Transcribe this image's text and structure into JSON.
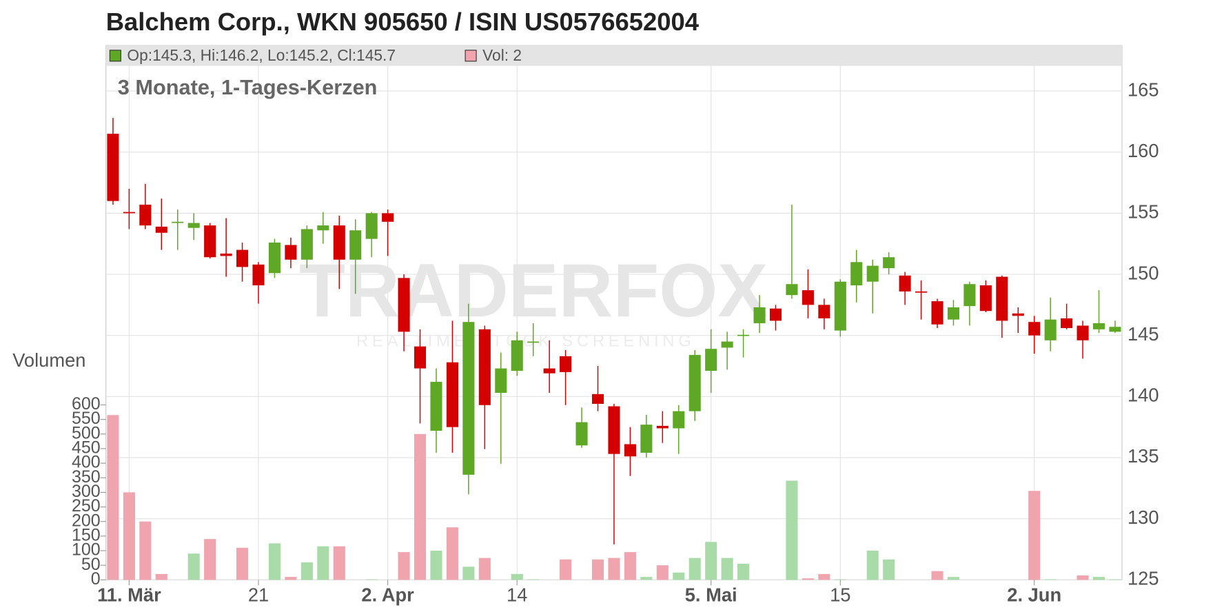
{
  "chart_data": {
    "type": "candlestick",
    "title": "Balchem Corp., WKN 905650 / ISIN US0576652004",
    "subtitle": "3 Monate, 1-Tages-Kerzen",
    "legend_ohlc": "Op:145.3, Hi:146.2, Lo:145.2, Cl:145.7",
    "legend_volume": "Vol: 2",
    "volume_axis_label": "Volumen",
    "watermark": "TRADERFOX",
    "watermark_sub": "REALTIME STOCK SCREENING",
    "categories": [
      null,
      "11. Mär",
      null,
      null,
      null,
      null,
      null,
      null,
      null,
      "21",
      null,
      null,
      null,
      null,
      null,
      null,
      null,
      "2. Apr",
      null,
      null,
      null,
      null,
      null,
      null,
      null,
      "14",
      null,
      null,
      null,
      null,
      null,
      null,
      null,
      null,
      null,
      null,
      null,
      "5. Mai",
      null,
      null,
      null,
      null,
      null,
      null,
      null,
      "15",
      null,
      null,
      null,
      null,
      null,
      null,
      null,
      null,
      null,
      null,
      null,
      "2. Jun",
      null,
      null,
      null,
      null,
      null
    ],
    "open": [
      161.5,
      155.1,
      155.7,
      153.9,
      154.3,
      153.8,
      154,
      151.7,
      152,
      150.8,
      150.1,
      152.4,
      151.2,
      153.6,
      154,
      151.2,
      152.9,
      155,
      149.7,
      144.1,
      137.2,
      142.8,
      133.6,
      145.5,
      140.3,
      142.1,
      144.4,
      142.3,
      143.3,
      136,
      140.2,
      139.2,
      136.1,
      135.4,
      137.6,
      137.4,
      138.8,
      142.1,
      144,
      145,
      146,
      147.2,
      148.3,
      148.7,
      147.5,
      145.4,
      149.1,
      149.4,
      150.5,
      149.9,
      148.6,
      147.8,
      146.3,
      147.4,
      149.1,
      149.8,
      146.8,
      146.1,
      144.6,
      146.4,
      145.8,
      145.5,
      145.3
    ],
    "high": [
      162.8,
      157,
      157.4,
      156.2,
      155.3,
      155,
      154.2,
      154.6,
      152.6,
      151,
      152.9,
      153,
      154,
      155.1,
      154.8,
      154.5,
      155.1,
      155.3,
      150,
      145.5,
      142.3,
      146.2,
      147.6,
      145.8,
      143.6,
      145.3,
      146,
      144.6,
      143.8,
      139.1,
      142.5,
      139.4,
      137.5,
      138.5,
      138.8,
      139.3,
      143.8,
      145.5,
      145.3,
      145.5,
      148.3,
      147.5,
      155.7,
      150.4,
      148,
      149.6,
      152,
      151.2,
      151.8,
      150.2,
      149.5,
      148,
      147.9,
      149.4,
      149.5,
      149.9,
      147.3,
      146.6,
      148.1,
      147.6,
      146.2,
      148.7,
      146.2
    ],
    "low": [
      155.7,
      153.7,
      153.7,
      152,
      152,
      152.8,
      151.3,
      149.8,
      149.4,
      147.6,
      149.7,
      150.5,
      150.5,
      152.5,
      148.8,
      148.4,
      151.4,
      151.5,
      143.7,
      137.8,
      135.4,
      135.4,
      132,
      135.7,
      134.5,
      141.7,
      143.3,
      140.3,
      139.3,
      135.8,
      138.8,
      127.9,
      133.5,
      135,
      136.2,
      135.3,
      138,
      140.3,
      142.2,
      143.2,
      145.2,
      145.4,
      148,
      146.4,
      145.5,
      144.9,
      147.7,
      146.8,
      150,
      147.5,
      146.3,
      145.6,
      145.8,
      145.8,
      146.9,
      144.8,
      145.2,
      143.5,
      143.7,
      145.5,
      143.1,
      145.2,
      145.2
    ],
    "close": [
      156,
      155,
      154,
      153.4,
      154.3,
      154.2,
      151.4,
      151.5,
      150.6,
      149.1,
      152.6,
      151.2,
      153.7,
      154,
      151.2,
      153.6,
      155,
      154.3,
      145.3,
      142.3,
      141.2,
      137.5,
      146.1,
      139.3,
      142.3,
      144.6,
      144.5,
      141.9,
      142,
      137.9,
      139.4,
      135.3,
      135.1,
      137.7,
      137.4,
      138.8,
      143.4,
      143.9,
      144.5,
      145.05,
      147.3,
      146.2,
      149.2,
      147.5,
      146.4,
      149.4,
      151,
      150.7,
      151.4,
      148.6,
      148.5,
      145.9,
      147.3,
      149.2,
      147,
      146.2,
      146.6,
      145,
      146.3,
      145.6,
      144.6,
      146,
      145.7
    ],
    "volume": [
      565,
      300,
      200,
      20,
      0,
      90,
      140,
      0,
      110,
      0,
      125,
      10,
      60,
      115,
      115,
      0,
      2,
      0,
      95,
      500,
      100,
      180,
      45,
      75,
      0,
      20,
      2,
      0,
      70,
      0,
      70,
      75,
      95,
      10,
      50,
      25,
      75,
      130,
      75,
      55,
      0,
      0,
      340,
      5,
      20,
      2,
      0,
      100,
      70,
      0,
      0,
      30,
      10,
      0,
      0,
      0,
      0,
      305,
      2,
      0,
      15,
      10,
      2
    ],
    "colors": {
      "up": "#5ea826",
      "down": "#d40000",
      "flat": "#5ea826",
      "volume_up": "#a8dba8",
      "volume_down": "#f0a4ad",
      "volume_flat": "#bbbbbb"
    },
    "ylim": [
      125,
      165
    ],
    "yticks": [
      125,
      130,
      135,
      140,
      145,
      150,
      155,
      160,
      165
    ],
    "y2lim": [
      0,
      600
    ],
    "y2ticks": [
      0,
      50,
      100,
      150,
      200,
      250,
      300,
      350,
      400,
      450,
      500,
      550,
      600
    ],
    "grid": true
  }
}
